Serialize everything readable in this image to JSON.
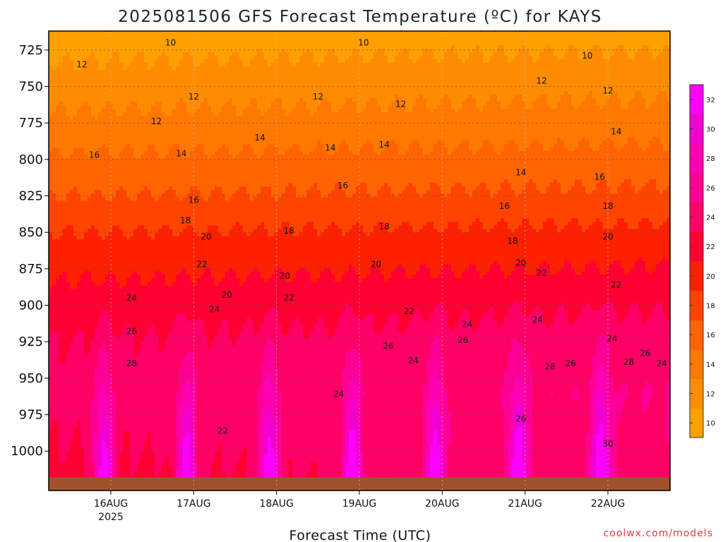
{
  "chart_data": {
    "type": "heatmap",
    "title": "2025081506 GFS Forecast Temperature (ºC) for KAYS",
    "xlabel": "Forecast Time (UTC)",
    "ylabel": "",
    "credit": "coolwx.com/models",
    "x_ticks": [
      {
        "label": "16AUG",
        "sublabel": "2025",
        "day": 16
      },
      {
        "label": "17AUG",
        "sublabel": "",
        "day": 17
      },
      {
        "label": "18AUG",
        "sublabel": "",
        "day": 18
      },
      {
        "label": "19AUG",
        "sublabel": "",
        "day": 19
      },
      {
        "label": "20AUG",
        "sublabel": "",
        "day": 20
      },
      {
        "label": "21AUG",
        "sublabel": "",
        "day": 21
      },
      {
        "label": "22AUG",
        "sublabel": "",
        "day": 22
      }
    ],
    "xlim_day": [
      15.25,
      22.75
    ],
    "y_ticks": [
      725,
      750,
      775,
      800,
      825,
      850,
      875,
      900,
      925,
      950,
      975,
      1000
    ],
    "ylim_hpa": [
      712,
      1027
    ],
    "surface_pressure_hpa": 1018,
    "colorbar": {
      "ticks": [
        10,
        12,
        14,
        16,
        18,
        20,
        22,
        24,
        26,
        28,
        30,
        32
      ],
      "range": [
        9,
        33
      ],
      "colors": [
        "#ffa000",
        "#ff8c00",
        "#ff7800",
        "#ff6400",
        "#ff4400",
        "#ff2000",
        "#ff0033",
        "#ff0066",
        "#ff0096",
        "#ff00b4",
        "#f000d2",
        "#ff00ff"
      ]
    },
    "temperature_profile_base": [
      {
        "hpa": 712,
        "t": 9.5
      },
      {
        "hpa": 725,
        "t": 10.5
      },
      {
        "hpa": 750,
        "t": 12
      },
      {
        "hpa": 775,
        "t": 13.5
      },
      {
        "hpa": 800,
        "t": 15.3
      },
      {
        "hpa": 825,
        "t": 17
      },
      {
        "hpa": 850,
        "t": 19
      },
      {
        "hpa": 875,
        "t": 20.5
      },
      {
        "hpa": 900,
        "t": 22
      },
      {
        "hpa": 925,
        "t": 23
      },
      {
        "hpa": 950,
        "t": 23.5
      },
      {
        "hpa": 975,
        "t": 24
      },
      {
        "hpa": 1000,
        "t": 24.5
      },
      {
        "hpa": 1027,
        "t": 25
      }
    ],
    "diurnal_peak_hour_utc": 22,
    "contour_labels": [
      {
        "t": 10,
        "day": 16.72,
        "hpa": 720
      },
      {
        "t": 10,
        "day": 19.05,
        "hpa": 720
      },
      {
        "t": 10,
        "day": 21.75,
        "hpa": 729
      },
      {
        "t": 12,
        "day": 15.65,
        "hpa": 735
      },
      {
        "t": 12,
        "day": 16.55,
        "hpa": 774
      },
      {
        "t": 12,
        "day": 17.0,
        "hpa": 757
      },
      {
        "t": 12,
        "day": 18.5,
        "hpa": 757
      },
      {
        "t": 12,
        "day": 19.5,
        "hpa": 762
      },
      {
        "t": 12,
        "day": 21.2,
        "hpa": 746
      },
      {
        "t": 12,
        "day": 22.0,
        "hpa": 753
      },
      {
        "t": 14,
        "day": 16.85,
        "hpa": 796
      },
      {
        "t": 14,
        "day": 17.8,
        "hpa": 785
      },
      {
        "t": 14,
        "day": 18.65,
        "hpa": 792
      },
      {
        "t": 14,
        "day": 19.3,
        "hpa": 790
      },
      {
        "t": 14,
        "day": 20.95,
        "hpa": 809
      },
      {
        "t": 14,
        "day": 22.1,
        "hpa": 781
      },
      {
        "t": 16,
        "day": 15.8,
        "hpa": 797
      },
      {
        "t": 16,
        "day": 17.0,
        "hpa": 828
      },
      {
        "t": 16,
        "day": 18.8,
        "hpa": 818
      },
      {
        "t": 16,
        "day": 20.75,
        "hpa": 832
      },
      {
        "t": 16,
        "day": 21.9,
        "hpa": 812
      },
      {
        "t": 18,
        "day": 16.9,
        "hpa": 842
      },
      {
        "t": 18,
        "day": 18.15,
        "hpa": 849
      },
      {
        "t": 18,
        "day": 19.3,
        "hpa": 846
      },
      {
        "t": 18,
        "day": 20.85,
        "hpa": 856
      },
      {
        "t": 18,
        "day": 22.0,
        "hpa": 832
      },
      {
        "t": 20,
        "day": 17.15,
        "hpa": 853
      },
      {
        "t": 20,
        "day": 17.4,
        "hpa": 893
      },
      {
        "t": 20,
        "day": 18.1,
        "hpa": 880
      },
      {
        "t": 20,
        "day": 19.2,
        "hpa": 872
      },
      {
        "t": 20,
        "day": 20.95,
        "hpa": 871
      },
      {
        "t": 20,
        "day": 22.0,
        "hpa": 853
      },
      {
        "t": 22,
        "day": 17.1,
        "hpa": 872
      },
      {
        "t": 22,
        "day": 17.35,
        "hpa": 986
      },
      {
        "t": 22,
        "day": 18.15,
        "hpa": 895
      },
      {
        "t": 22,
        "day": 19.6,
        "hpa": 904
      },
      {
        "t": 22,
        "day": 21.2,
        "hpa": 878
      },
      {
        "t": 22,
        "day": 22.1,
        "hpa": 886
      },
      {
        "t": 24,
        "day": 16.25,
        "hpa": 895
      },
      {
        "t": 24,
        "day": 17.25,
        "hpa": 903
      },
      {
        "t": 24,
        "day": 18.75,
        "hpa": 961
      },
      {
        "t": 24,
        "day": 19.65,
        "hpa": 938
      },
      {
        "t": 24,
        "day": 20.3,
        "hpa": 913
      },
      {
        "t": 24,
        "day": 21.15,
        "hpa": 910
      },
      {
        "t": 24,
        "day": 22.05,
        "hpa": 923
      },
      {
        "t": 24,
        "day": 22.65,
        "hpa": 940
      },
      {
        "t": 26,
        "day": 16.25,
        "hpa": 918
      },
      {
        "t": 26,
        "day": 19.35,
        "hpa": 928
      },
      {
        "t": 26,
        "day": 20.25,
        "hpa": 924
      },
      {
        "t": 26,
        "day": 20.95,
        "hpa": 978
      },
      {
        "t": 26,
        "day": 21.55,
        "hpa": 940
      },
      {
        "t": 26,
        "day": 22.45,
        "hpa": 933
      },
      {
        "t": 28,
        "day": 16.25,
        "hpa": 940
      },
      {
        "t": 28,
        "day": 21.3,
        "hpa": 942
      },
      {
        "t": 28,
        "day": 22.25,
        "hpa": 939
      },
      {
        "t": 30,
        "day": 22.0,
        "hpa": 995
      }
    ]
  }
}
